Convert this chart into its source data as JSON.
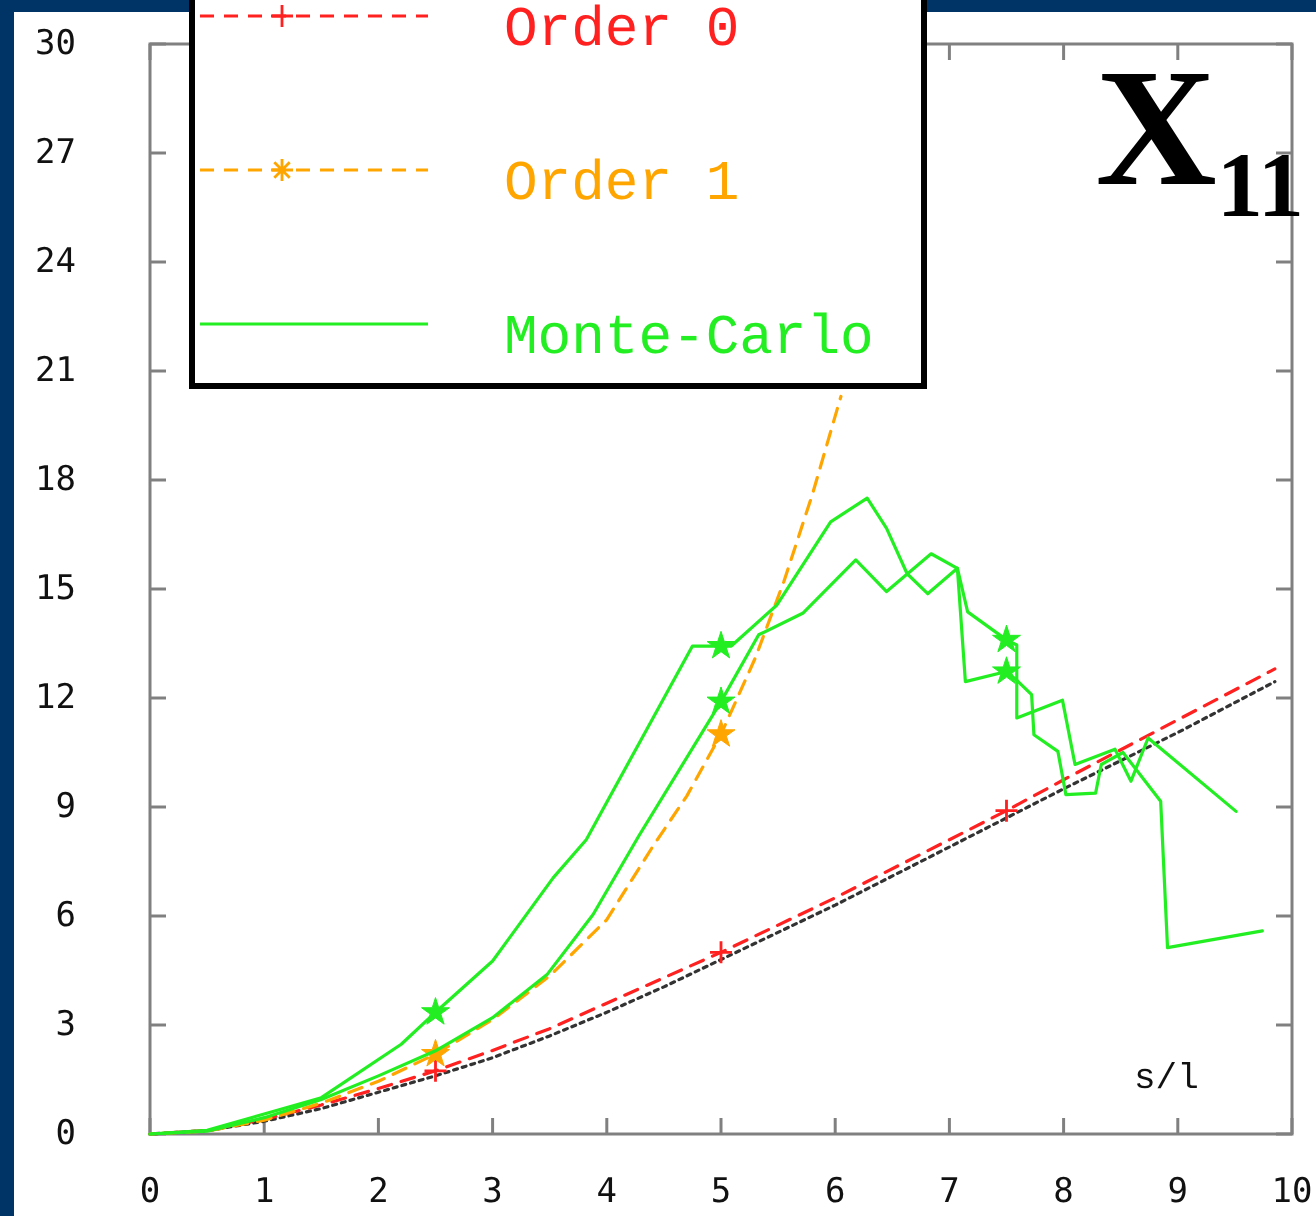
{
  "chart_data": {
    "type": "line",
    "title": "X$_{11}$",
    "xlabel": "s/l",
    "xlim": [
      0,
      10
    ],
    "ylim": [
      0,
      30
    ],
    "xticks": [
      0,
      1,
      2,
      3,
      4,
      5,
      6,
      7,
      8,
      9,
      10
    ],
    "yticks": [
      0,
      3,
      6,
      9,
      12,
      15,
      18,
      21,
      24,
      27,
      30
    ],
    "legend": "top left",
    "series": [
      {
        "color": "#333333",
        "line_style": "dotted",
        "x": [
          0,
          0.5,
          1,
          1.5,
          2,
          2.5,
          3,
          3.5,
          4,
          4.5,
          5,
          6,
          7,
          7.5,
          8,
          9,
          9.85
        ],
        "values": [
          0,
          0.09,
          0.35,
          0.7,
          1.15,
          1.6,
          2.1,
          2.7,
          3.35,
          4.05,
          4.8,
          6.3,
          7.9,
          8.7,
          9.5,
          11.05,
          12.45
        ]
      },
      {
        "name": "Order 0",
        "color": "#ff2020",
        "line_style": "dashed",
        "x": [
          0,
          0.5,
          1,
          1.5,
          2,
          2.5,
          3,
          3.5,
          4,
          4.5,
          5,
          6,
          7,
          7.5,
          8,
          9,
          9.85
        ],
        "values": [
          0,
          0.1,
          0.4,
          0.8,
          1.25,
          1.74,
          2.3,
          2.9,
          3.6,
          4.3,
          5.0,
          6.5,
          8.1,
          8.9,
          9.75,
          11.4,
          12.8
        ]
      },
      {
        "type": "scatter",
        "color": "#ff2020",
        "marker": "cross",
        "x": [
          2.5,
          5,
          7.5
        ],
        "values": [
          1.74,
          5.0,
          8.9
        ]
      },
      {
        "name": "Order 1",
        "color": "#ffa500",
        "line_style": "dashed",
        "x": [
          0,
          0.5,
          1,
          1.5,
          2,
          2.5,
          3,
          3.5,
          4,
          4.4,
          4.7,
          5,
          5.3,
          5.55,
          5.8,
          6.05
        ],
        "values": [
          0,
          0.08,
          0.38,
          0.85,
          1.45,
          2.2,
          3.15,
          4.35,
          5.9,
          7.9,
          9.3,
          11.0,
          13.1,
          15.2,
          17.6,
          20.3
        ]
      },
      {
        "type": "scatter",
        "color": "#ffa500",
        "marker": "star",
        "x": [
          2.5,
          5
        ],
        "values": [
          2.2,
          11.0
        ]
      },
      {
        "name": "Monte-Carlo",
        "color": "#22ee22",
        "line_style": "solid",
        "x": [
          0,
          0.5,
          1,
          1.5,
          2.2,
          2.5,
          3,
          3.53,
          3.82,
          4.34,
          4.75,
          5.09,
          5.49,
          5.96,
          6.28,
          6.45,
          6.63,
          6.81,
          7.07,
          7.16,
          7.5,
          7.59,
          7.59,
          7.99,
          8.1,
          8.45,
          8.59,
          8.74,
          9.51
        ],
        "values": [
          0,
          0.1,
          0.55,
          1.0,
          2.47,
          3.35,
          4.76,
          7.05,
          8.1,
          11.08,
          13.43,
          13.43,
          14.56,
          16.85,
          17.5,
          16.67,
          15.42,
          14.87,
          15.57,
          14.37,
          13.6,
          13.46,
          11.45,
          11.94,
          10.17,
          10.59,
          9.71,
          10.9,
          8.88
        ]
      },
      {
        "color": "#22ee22",
        "line_style": "solid",
        "x": [
          0,
          0.5,
          1,
          1.5,
          2,
          2.5,
          3,
          3.48,
          3.88,
          4.28,
          5,
          5.33,
          5.72,
          6.18,
          6.45,
          6.84,
          7.07,
          7.14,
          7.5,
          7.6,
          7.72,
          7.74,
          7.95,
          8.02,
          8.28,
          8.33,
          8.52,
          8.85,
          8.91,
          9.74
        ],
        "values": [
          0,
          0.08,
          0.45,
          0.95,
          1.6,
          2.29,
          3.2,
          4.4,
          6.04,
          8.2,
          11.9,
          13.74,
          14.34,
          15.8,
          14.93,
          15.97,
          15.57,
          12.45,
          12.73,
          12.46,
          12.09,
          10.99,
          10.53,
          9.34,
          9.38,
          10.17,
          10.5,
          9.16,
          5.13,
          5.59
        ]
      },
      {
        "type": "scatter",
        "color": "#22ee22",
        "marker": "star",
        "x": [
          2.5,
          5,
          5,
          7.5,
          7.5
        ],
        "values": [
          3.35,
          13.43,
          11.9,
          13.6,
          12.73
        ]
      }
    ]
  }
}
